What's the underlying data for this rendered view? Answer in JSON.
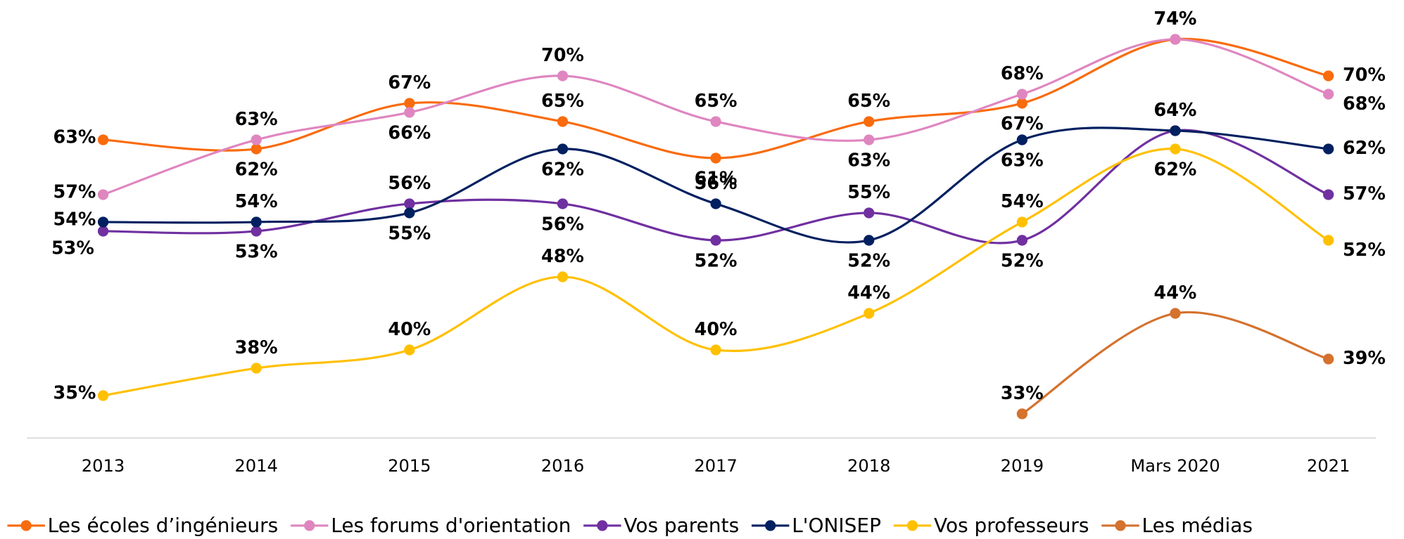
{
  "chart_data": {
    "type": "line",
    "categories": [
      "2013",
      "2014",
      "2015",
      "2016",
      "2017",
      "2018",
      "2019",
      "Mars 2020",
      "2021"
    ],
    "series": [
      {
        "name": "Les écoles d’ingénieurs",
        "color": "#f96b0c",
        "values": [
          63,
          62,
          67,
          65,
          61,
          65,
          67,
          74,
          70
        ],
        "value_labels": [
          "63%",
          "62%",
          "67%",
          "65%",
          "61%",
          "65%",
          "67%",
          "74%",
          "70%"
        ]
      },
      {
        "name": "Les forums d'orientation",
        "color": "#df86c0",
        "values": [
          57,
          63,
          66,
          70,
          65,
          63,
          68,
          74,
          68
        ],
        "value_labels": [
          "57%",
          "63%",
          "66%",
          "70%",
          "65%",
          "63%",
          "68%",
          "74%",
          "68%"
        ]
      },
      {
        "name": "Vos parents",
        "color": "#7030a0",
        "values": [
          53,
          53,
          56,
          56,
          52,
          55,
          52,
          64,
          57
        ],
        "value_labels": [
          "53%",
          "53%",
          "56%",
          "56%",
          "52%",
          "55%",
          "52%",
          "64%",
          "57%"
        ]
      },
      {
        "name": "L'ONISEP",
        "color": "#002060",
        "values": [
          54,
          54,
          55,
          62,
          56,
          52,
          63,
          64,
          62
        ],
        "value_labels": [
          "54%",
          "54%",
          "55%",
          "62%",
          "56%",
          "52%",
          "63%",
          "64%",
          "62%"
        ]
      },
      {
        "name": "Vos professeurs",
        "color": "#ffc000",
        "values": [
          35,
          38,
          40,
          48,
          40,
          44,
          54,
          62,
          52
        ],
        "value_labels": [
          "35%",
          "38%",
          "40%",
          "48%",
          "40%",
          "44%",
          "54%",
          "62%",
          "52%"
        ]
      },
      {
        "name": "Les médias",
        "color": "#d4722e",
        "values": [
          null,
          null,
          null,
          null,
          null,
          null,
          33,
          44,
          39
        ],
        "value_labels": [
          null,
          null,
          null,
          null,
          null,
          null,
          "33%",
          "44%",
          "39%"
        ]
      }
    ]
  }
}
